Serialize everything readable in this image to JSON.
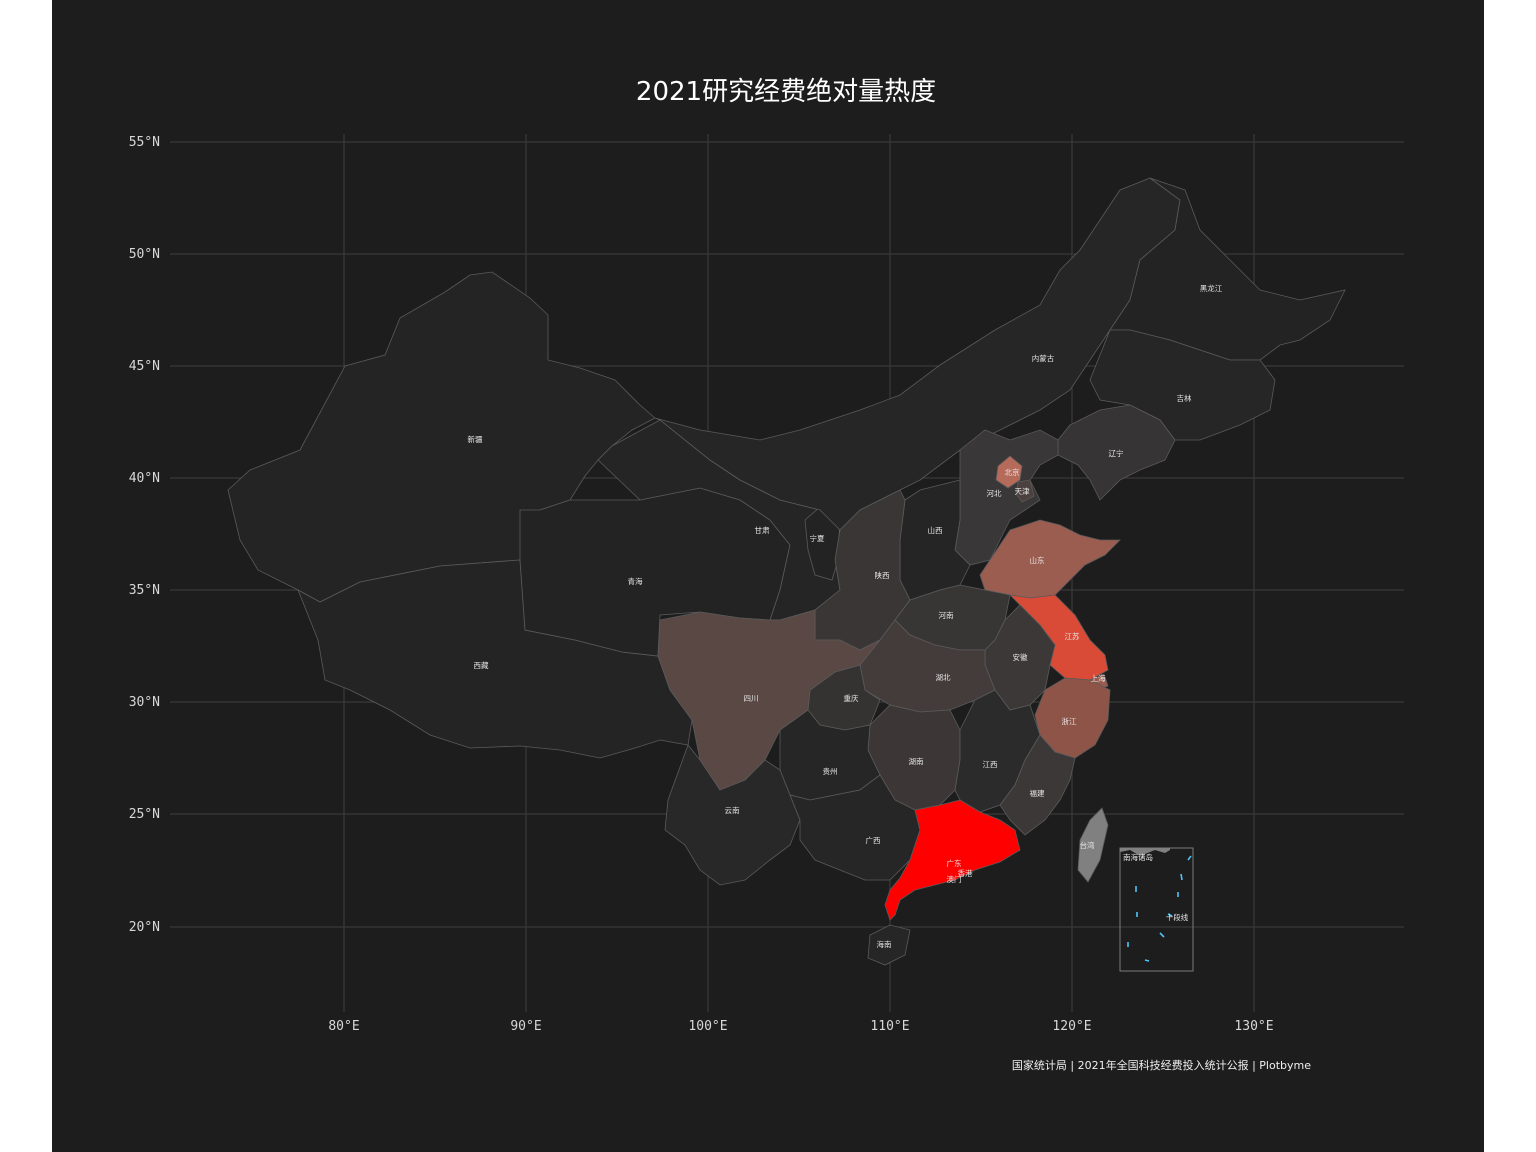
{
  "title": "2021研究经费绝对量热度",
  "caption": "国家统计局 | 2021年全国科技经费投入统计公报 | Plotbyme",
  "axes": {
    "lat_labels": [
      "55°N",
      "50°N",
      "45°N",
      "40°N",
      "35°N",
      "30°N",
      "25°N",
      "20°N"
    ],
    "lon_labels": [
      "80°E",
      "90°E",
      "100°E",
      "110°E",
      "120°E",
      "130°E"
    ]
  },
  "colors": {
    "background": "#1d1d1d",
    "grid": "#3a3a3a",
    "low": "#262626",
    "high": "#ff0000",
    "taiwan": "#808080",
    "nine_dash": "#4fc3f7"
  },
  "provinces": {
    "xinjiang": "新疆",
    "xizang": "西藏",
    "qinghai": "青海",
    "gansu": "甘肃",
    "neimenggu": "内蒙古",
    "heilongjiang": "黑龙江",
    "jilin": "吉林",
    "liaoning": "辽宁",
    "beijing": "北京",
    "tianjin": "天津",
    "hebei": "河北",
    "shanxi": "山西",
    "shaanxi": "陕西",
    "ningxia": "宁夏",
    "shandong": "山东",
    "henan": "河南",
    "jiangsu": "江苏",
    "anhui": "安徽",
    "shanghai": "上海",
    "hubei": "湖北",
    "sichuan": "四川",
    "chongqing": "重庆",
    "zhejiang": "浙江",
    "hunan": "湖南",
    "jiangxi": "江西",
    "guizhou": "贵州",
    "yunnan": "云南",
    "fujian": "福建",
    "taiwan": "台湾",
    "guangxi": "广西",
    "guangdong": "广东",
    "xianggang": "香港",
    "aomen": "澳门",
    "hainan": "海南"
  },
  "inset": {
    "title": "南海诸岛",
    "nine_dash_label": "十段线"
  }
}
